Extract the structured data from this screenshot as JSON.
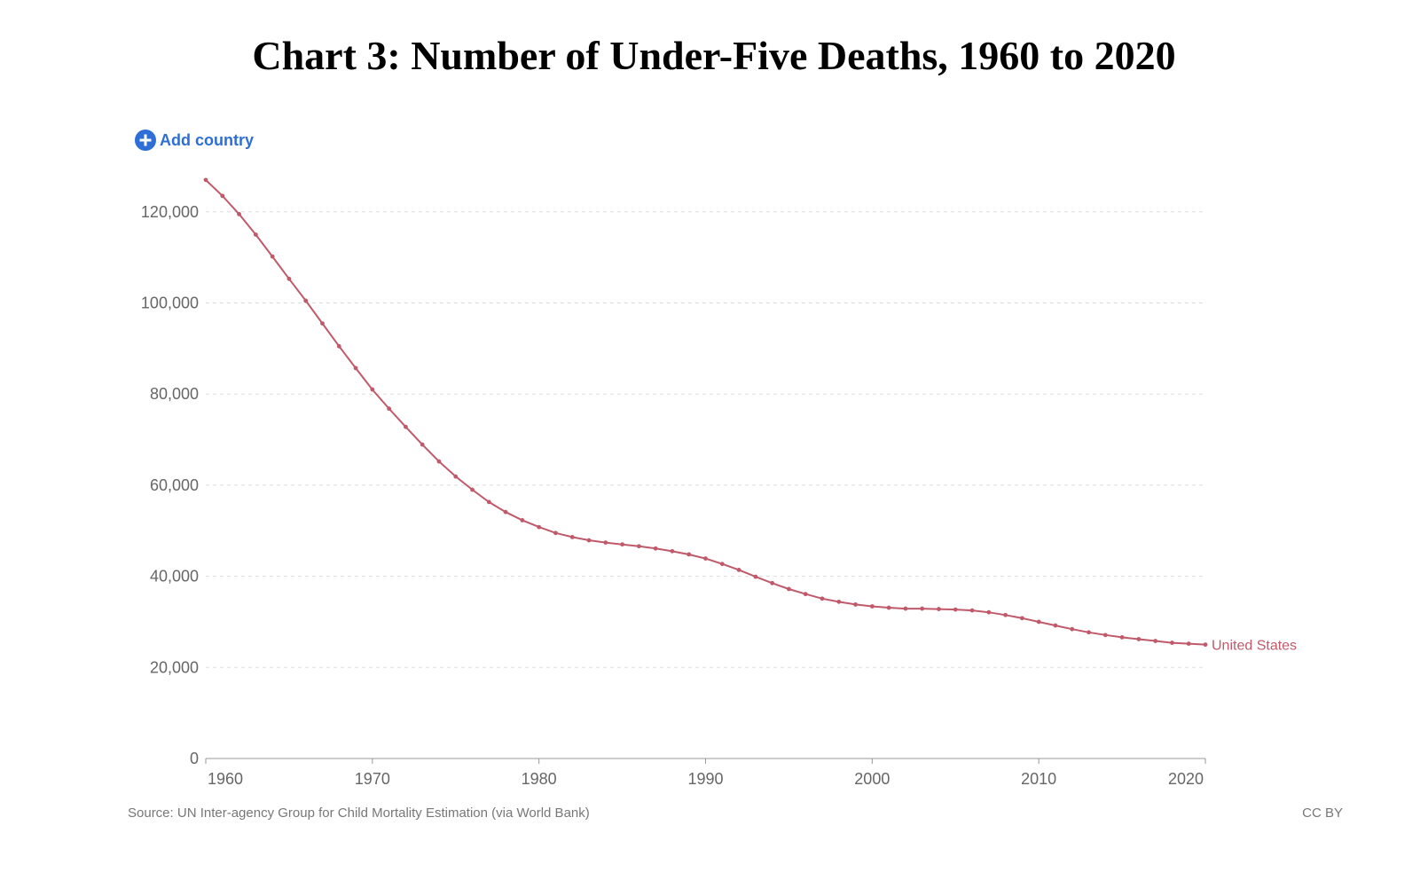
{
  "header": {
    "title": "Chart 3: Number of Under-Five Deaths, 1960 to 2020"
  },
  "controls": {
    "add_country_label": "Add country",
    "add_icon": "plus-circle-icon"
  },
  "footer": {
    "source": "Source: UN Inter-agency Group for Child Mortality Estimation (via World Bank)",
    "license": "CC BY"
  },
  "colors": {
    "series": "#c05a6a",
    "link": "#2d6fd6",
    "grid": "#dddddd",
    "axis": "#999999"
  },
  "chart_data": {
    "type": "line",
    "title": "Chart 3: Number of Under-Five Deaths, 1960 to 2020",
    "xlabel": "",
    "ylabel": "",
    "xlim": [
      1960,
      2020
    ],
    "ylim": [
      0,
      120000
    ],
    "y_ticks": [
      0,
      20000,
      40000,
      60000,
      80000,
      100000,
      120000
    ],
    "y_tick_labels": [
      "0",
      "20,000",
      "40,000",
      "60,000",
      "80,000",
      "100,000",
      "120,000"
    ],
    "x_ticks": [
      1960,
      1970,
      1980,
      1990,
      2000,
      2010,
      2020
    ],
    "x_tick_labels": [
      "1960",
      "1970",
      "1980",
      "1990",
      "2000",
      "2010",
      "2020"
    ],
    "grid": "horizontal dashed",
    "legend": "inline label at line end",
    "x": [
      1960,
      1961,
      1962,
      1963,
      1964,
      1965,
      1966,
      1967,
      1968,
      1969,
      1970,
      1971,
      1972,
      1973,
      1974,
      1975,
      1976,
      1977,
      1978,
      1979,
      1980,
      1981,
      1982,
      1983,
      1984,
      1985,
      1986,
      1987,
      1988,
      1989,
      1990,
      1991,
      1992,
      1993,
      1994,
      1995,
      1996,
      1997,
      1998,
      1999,
      2000,
      2001,
      2002,
      2003,
      2004,
      2005,
      2006,
      2007,
      2008,
      2009,
      2010,
      2011,
      2012,
      2013,
      2014,
      2015,
      2016,
      2017,
      2018,
      2019,
      2020
    ],
    "series": [
      {
        "name": "United States",
        "values": [
          127000,
          123500,
          119500,
          115000,
          110200,
          105300,
          100500,
          95500,
          90500,
          85700,
          81000,
          76800,
          72800,
          68900,
          65200,
          61900,
          59000,
          56300,
          54100,
          52300,
          50800,
          49500,
          48600,
          47900,
          47400,
          47000,
          46600,
          46100,
          45500,
          44800,
          43900,
          42700,
          41400,
          39900,
          38500,
          37200,
          36100,
          35100,
          34400,
          33800,
          33400,
          33100,
          32900,
          32900,
          32800,
          32700,
          32500,
          32100,
          31500,
          30800,
          30000,
          29200,
          28400,
          27700,
          27100,
          26600,
          26200,
          25800,
          25400,
          25200,
          25000
        ]
      }
    ]
  }
}
